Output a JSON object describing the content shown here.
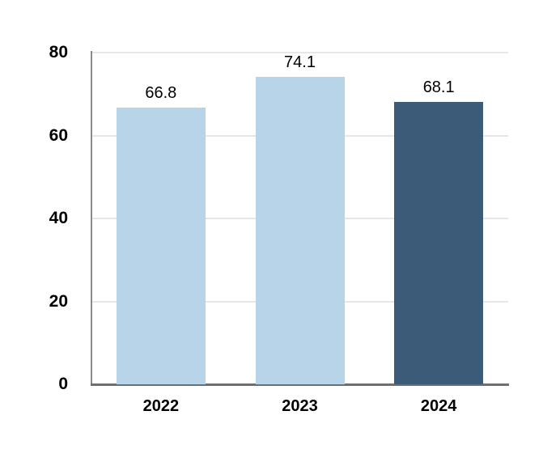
{
  "chart_data": {
    "type": "bar",
    "title": "",
    "xlabel": "",
    "ylabel": "",
    "categories": [
      "2022",
      "2023",
      "2024"
    ],
    "values": [
      66.8,
      74.1,
      68.1
    ],
    "data_labels": [
      "66.8",
      "74.1",
      "68.1"
    ],
    "bar_colors": [
      "#B8D4E9",
      "#B8D4E9",
      "#3B5B79"
    ],
    "ylim": [
      0,
      80
    ],
    "yticks": [
      0,
      20,
      40,
      60,
      80
    ],
    "gridlines": "horizontal",
    "legend": "none"
  },
  "colors": {
    "background": "#FFFFFF",
    "bar_light": "#B8D4E9",
    "bar_dark": "#3B5B79",
    "gridline": "#E7E7E7",
    "y_axis_line": "#8A8A8A",
    "x_axis_line": "#6F6F6F",
    "label_text": "#000000"
  }
}
